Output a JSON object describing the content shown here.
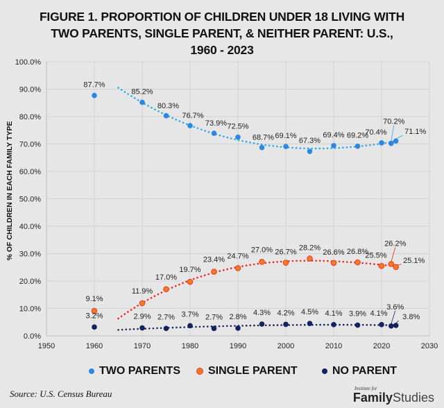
{
  "chart_data": {
    "type": "scatter",
    "title_lines": [
      "FIGURE 1. PROPORTION OF CHILDREN UNDER 18 LIVING WITH",
      "TWO PARENTS, SINGLE PARENT, & NEITHER PARENT: U.S.,",
      "1960 - 2023"
    ],
    "xlabel": "",
    "ylabel": "% OF CHILDREN IN EACH FAMILY TYPE",
    "xlim": [
      1950,
      2030
    ],
    "ylim": [
      0,
      100
    ],
    "x_ticks": [
      1950,
      1960,
      1970,
      1980,
      1990,
      2000,
      2010,
      2020,
      2030
    ],
    "y_ticks": [
      "0.0%",
      "10.0%",
      "20.0%",
      "30.0%",
      "40.0%",
      "50.0%",
      "60.0%",
      "70.0%",
      "80.0%",
      "90.0%",
      "100.0%"
    ],
    "grid": true,
    "legend_position": "bottom",
    "trendline": "dotted polynomial, from 1965",
    "x": [
      1960,
      1970,
      1975,
      1980,
      1985,
      1990,
      1995,
      2000,
      2005,
      2010,
      2015,
      2020,
      2022,
      2023
    ],
    "series": [
      {
        "name": "TWO PARENTS",
        "color": "#2e86de",
        "trend_color": "#29a8e8",
        "values": [
          87.7,
          85.2,
          80.3,
          76.7,
          73.9,
          72.5,
          68.7,
          69.1,
          67.3,
          69.4,
          69.2,
          70.4,
          70.2,
          71.1
        ],
        "labels": [
          "87.7%",
          "85.2%",
          "80.3%",
          "76.7%",
          "73.9%",
          "72.5%",
          "68.7%",
          "69.1%",
          "67.3%",
          "69.4%",
          "69.2%",
          "70.4%",
          "70.2%",
          "71.1%"
        ]
      },
      {
        "name": "SINGLE PARENT",
        "color": "#f07d2c",
        "edge_color": "#e8392b",
        "trend_color": "#f0231c",
        "values": [
          9.1,
          11.9,
          17.0,
          19.7,
          23.4,
          24.7,
          27.0,
          26.7,
          28.2,
          26.6,
          26.8,
          25.5,
          26.2,
          25.1
        ],
        "labels": [
          "9.1%",
          "11.9%",
          "17.0%",
          "19.7%",
          "23.4%",
          "24.7%",
          "27.0%",
          "26.7%",
          "28.2%",
          "26.6%",
          "26.8%",
          "25.5%",
          "26.2%",
          "25.1%"
        ]
      },
      {
        "name": "NO PARENT",
        "color": "#14235e",
        "trend_color": "#14235e",
        "values": [
          3.2,
          2.9,
          2.7,
          3.7,
          2.7,
          2.8,
          4.3,
          4.2,
          4.5,
          4.1,
          3.9,
          4.1,
          3.6,
          3.8
        ],
        "labels": [
          "3.2%",
          "2.9%",
          "2.7%",
          "3.7%",
          "2.7%",
          "2.8%",
          "4.3%",
          "4.2%",
          "4.5%",
          "4.1%",
          "3.9%",
          "4.1%",
          "3.6%",
          "3.8%"
        ]
      }
    ]
  },
  "legend": [
    {
      "label": "TWO PARENTS",
      "color": "#2e86de"
    },
    {
      "label": "SINGLE PARENT",
      "color": "#f07d2c"
    },
    {
      "label": "NO PARENT",
      "color": "#14235e"
    }
  ],
  "footer": {
    "source": "Source: U.S. Census Bureau",
    "logo_small": "Institute for",
    "logo_bold": "Family",
    "logo_light": "Studies"
  }
}
